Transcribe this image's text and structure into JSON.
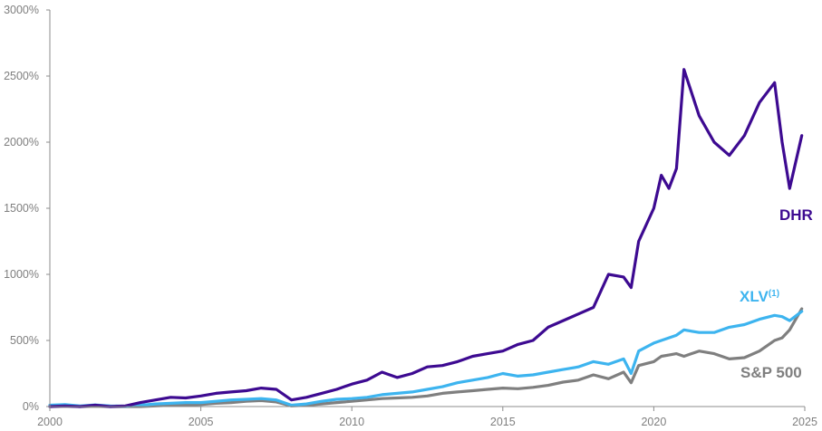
{
  "chart_data": {
    "type": "line",
    "title": "",
    "xlabel": "",
    "ylabel": "",
    "xlim": [
      2000,
      2025
    ],
    "ylim": [
      0,
      3000
    ],
    "grid": false,
    "legend_position": "inline labels at right end of series",
    "x_ticks": [
      "2000",
      "2005",
      "2010",
      "2015",
      "2020",
      "2025"
    ],
    "y_ticks": [
      "0%",
      "500%",
      "1000%",
      "1500%",
      "2000%",
      "2500%",
      "3000%"
    ],
    "x": [
      2000,
      2000.5,
      2001,
      2001.5,
      2002,
      2002.5,
      2003,
      2003.5,
      2004,
      2004.5,
      2005,
      2005.5,
      2006,
      2006.5,
      2007,
      2007.5,
      2008,
      2008.5,
      2009,
      2009.5,
      2010,
      2010.5,
      2011,
      2011.5,
      2012,
      2012.5,
      2013,
      2013.5,
      2014,
      2014.5,
      2015,
      2015.5,
      2016,
      2016.5,
      2017,
      2017.5,
      2018,
      2018.5,
      2019,
      2019.25,
      2019.5,
      2020,
      2020.25,
      2020.5,
      2020.75,
      2021,
      2021.5,
      2022,
      2022.5,
      2023,
      2023.5,
      2024,
      2024.25,
      2024.5,
      2024.9
    ],
    "series": [
      {
        "name": "DHR",
        "color": "#3d0a91",
        "label": "DHR",
        "values": [
          0,
          5,
          0,
          10,
          0,
          5,
          30,
          50,
          70,
          65,
          80,
          100,
          110,
          120,
          140,
          130,
          50,
          70,
          100,
          130,
          170,
          200,
          260,
          220,
          250,
          300,
          310,
          340,
          380,
          400,
          420,
          470,
          500,
          600,
          650,
          700,
          750,
          1000,
          980,
          900,
          1250,
          1500,
          1750,
          1650,
          1800,
          2550,
          2200,
          2000,
          1900,
          2050,
          2300,
          2450,
          2000,
          1650,
          2050
        ]
      },
      {
        "name": "XLV",
        "label": "XLV",
        "label_superscript": "(1)",
        "color": "#3db4ef",
        "values": [
          10,
          15,
          5,
          12,
          5,
          3,
          10,
          20,
          25,
          30,
          30,
          40,
          50,
          55,
          60,
          50,
          10,
          20,
          40,
          55,
          60,
          70,
          90,
          100,
          110,
          130,
          150,
          180,
          200,
          220,
          250,
          230,
          240,
          260,
          280,
          300,
          340,
          320,
          360,
          250,
          420,
          480,
          500,
          520,
          540,
          580,
          560,
          560,
          600,
          620,
          660,
          690,
          680,
          650,
          720
        ]
      },
      {
        "name": "S&P 500",
        "label": "S&P 500",
        "color": "#7f7f7f",
        "values": [
          0,
          3,
          0,
          2,
          0,
          0,
          0,
          5,
          10,
          12,
          15,
          25,
          30,
          40,
          45,
          35,
          5,
          10,
          20,
          30,
          40,
          50,
          60,
          65,
          70,
          80,
          100,
          110,
          120,
          130,
          140,
          135,
          145,
          160,
          185,
          200,
          240,
          210,
          260,
          180,
          310,
          340,
          380,
          390,
          400,
          380,
          420,
          400,
          360,
          370,
          420,
          500,
          520,
          580,
          740
        ]
      }
    ]
  },
  "axes": {
    "y_labels": [
      "0%",
      "500%",
      "1000%",
      "1500%",
      "2000%",
      "2500%",
      "3000%"
    ],
    "x_labels": [
      "2000",
      "2005",
      "2010",
      "2015",
      "2020",
      "2025"
    ]
  },
  "labels": {
    "dhr": "DHR",
    "xlv": "XLV",
    "xlv_sup": "(1)",
    "sp500": "S&P 500"
  }
}
